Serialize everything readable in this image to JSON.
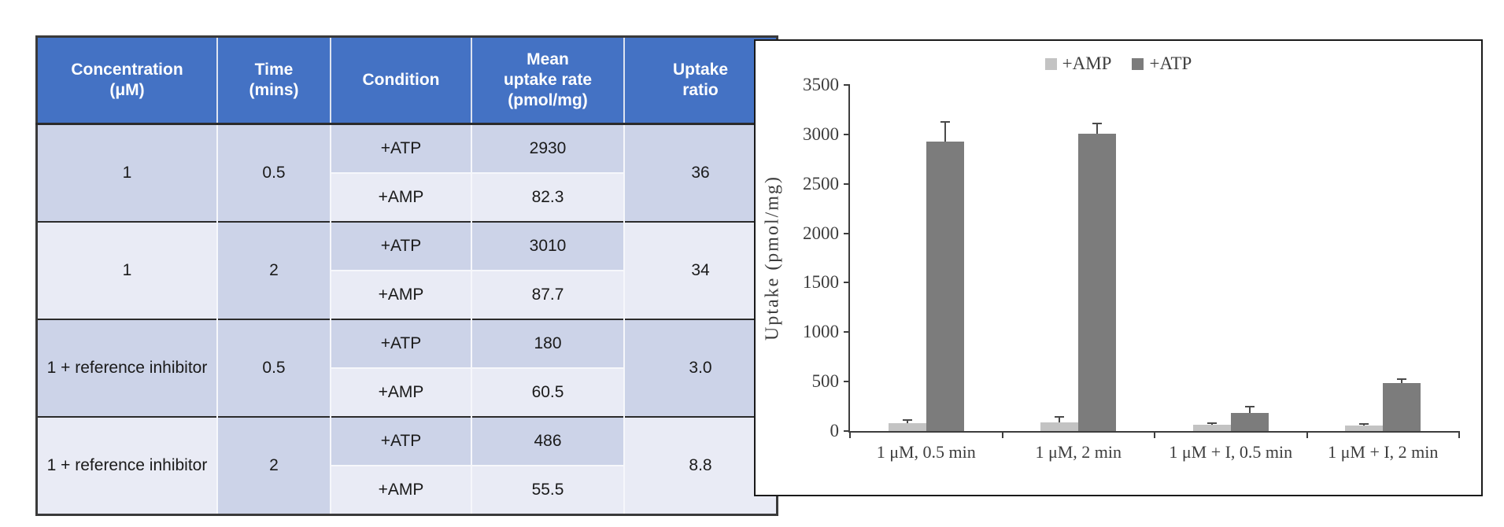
{
  "table": {
    "headers": [
      "Concentration\n(μM)",
      "Time\n(mins)",
      "Condition",
      "Mean\nuptake rate\n(pmol/mg)",
      "Uptake\nratio"
    ],
    "groups": [
      {
        "concentration": "1",
        "time": "0.5",
        "ratio": "36",
        "rows": [
          {
            "condition": "+ATP",
            "rate": "2930"
          },
          {
            "condition": "+AMP",
            "rate": "82.3"
          }
        ]
      },
      {
        "concentration": "1",
        "time": "2",
        "ratio": "34",
        "rows": [
          {
            "condition": "+ATP",
            "rate": "3010"
          },
          {
            "condition": "+AMP",
            "rate": "87.7"
          }
        ]
      },
      {
        "concentration": "1 + reference inhibitor",
        "time": "0.5",
        "ratio": "3.0",
        "rows": [
          {
            "condition": "+ATP",
            "rate": "180"
          },
          {
            "condition": "+AMP",
            "rate": "60.5"
          }
        ]
      },
      {
        "concentration": "1 + reference inhibitor",
        "time": "2",
        "ratio": "8.8",
        "rows": [
          {
            "condition": "+ATP",
            "rate": "486"
          },
          {
            "condition": "+AMP",
            "rate": "55.5"
          }
        ]
      }
    ]
  },
  "chart_data": {
    "type": "bar",
    "categories": [
      "1 μM, 0.5 min",
      "1 μM, 2 min",
      "1 μM + I, 0.5 min",
      "1 μM + I, 2 min"
    ],
    "series": [
      {
        "name": "+AMP",
        "values": [
          82.3,
          87.7,
          60.5,
          55.5
        ],
        "errors": [
          25,
          45,
          12,
          10
        ],
        "color": "#c3c3c3"
      },
      {
        "name": "+ATP",
        "values": [
          2930,
          3010,
          180,
          486
        ],
        "errors": [
          190,
          95,
          60,
          35
        ],
        "color": "#7c7c7c"
      }
    ],
    "title": "",
    "xlabel": "",
    "ylabel": "Uptake (pmol/mg)",
    "ylim": [
      0,
      3500
    ],
    "ytick_step": 500,
    "grid": false,
    "legend_position": "top"
  },
  "colors": {
    "header_bg": "#4472c4",
    "band_dark": "#ccd3e8",
    "band_light": "#e9ebf5",
    "amp_bar": "#c3c3c3",
    "atp_bar": "#7c7c7c"
  }
}
